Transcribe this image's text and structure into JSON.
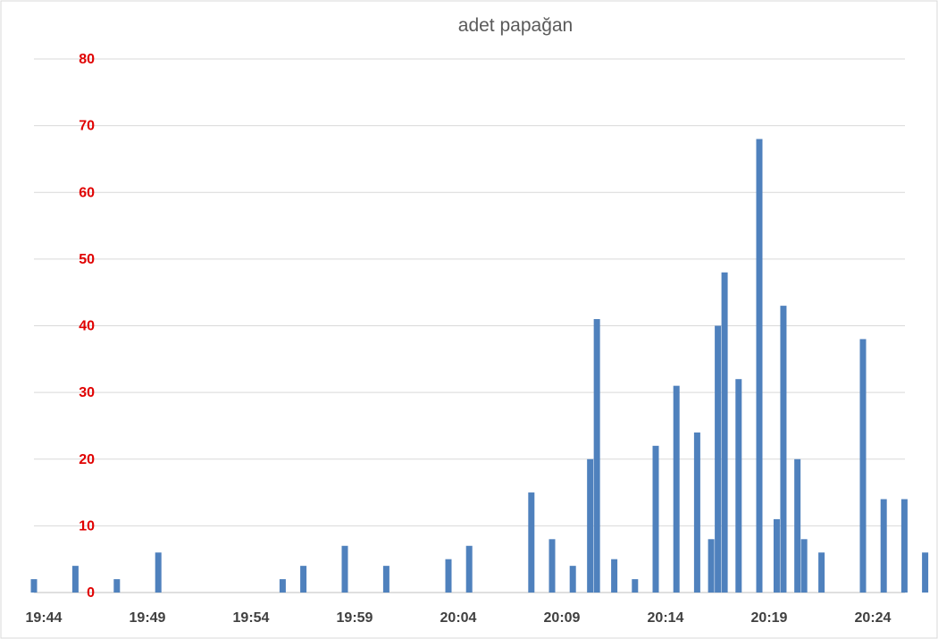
{
  "chart_data": {
    "type": "bar",
    "title": "adet papağan",
    "xlabel": "",
    "ylabel": "",
    "ylim": [
      0,
      80
    ],
    "yticks": [
      0,
      10,
      20,
      30,
      40,
      50,
      60,
      70,
      80
    ],
    "xlim": [
      "19:44",
      "20:26"
    ],
    "xticks": [
      "19:44",
      "19:49",
      "19:54",
      "19:59",
      "20:04",
      "20:09",
      "20:14",
      "20:19",
      "20:24"
    ],
    "grid": true,
    "legend": "none",
    "bar_color": "#4f81bd",
    "tick_color": "#e00000",
    "series": [
      {
        "x": [
          "19:44",
          "19:46",
          "19:48",
          "19:50",
          "19:56",
          "19:57",
          "19:59",
          "20:01",
          "20:04",
          "20:05",
          "20:08",
          "20:09",
          "20:10",
          "20:11",
          "20:11",
          "20:12",
          "20:13",
          "20:14",
          "20:15",
          "20:16",
          "20:17",
          "20:17",
          "20:17",
          "20:18",
          "20:19",
          "20:20",
          "20:20",
          "20:21",
          "20:21",
          "20:22",
          "20:24",
          "20:25",
          "20:26",
          "20:27"
        ],
        "values": [
          2,
          4,
          2,
          6,
          2,
          4,
          7,
          4,
          5,
          7,
          15,
          8,
          4,
          20,
          41,
          5,
          2,
          22,
          31,
          24,
          8,
          40,
          48,
          32,
          68,
          11,
          43,
          20,
          8,
          6,
          38,
          14,
          14,
          6
        ]
      }
    ]
  }
}
